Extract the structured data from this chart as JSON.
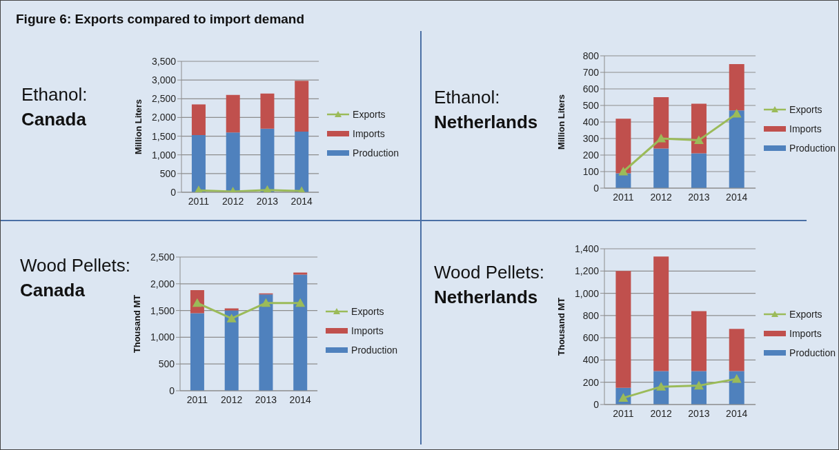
{
  "chart_data": [
    {
      "type": "bar",
      "title": "Ethanol:",
      "subtitle": "Canada",
      "annotations": [
        "Figure 6: Exports compared to import demand"
      ],
      "ylabel": "Million Liters",
      "categories": [
        "2011",
        "2012",
        "2013",
        "2014"
      ],
      "stacked": true,
      "grid": "y",
      "legend": "right",
      "marker": "triangle",
      "ylim": [
        0,
        3500
      ],
      "yticks": [
        0,
        500,
        {
          "value": 1000,
          "label": "1,000"
        },
        {
          "value": 1500,
          "label": "1,500"
        },
        {
          "value": 2000,
          "label": "2,000"
        },
        {
          "value": 2500,
          "label": "2,500"
        },
        {
          "value": 3000,
          "label": "3,000"
        },
        {
          "value": 3500,
          "label": "3,500"
        }
      ],
      "series": [
        {
          "name": "Production",
          "color": "#4f81bd",
          "values": [
            1530,
            1600,
            1700,
            1620
          ]
        },
        {
          "name": "Imports",
          "color": "#c0504d",
          "values": [
            820,
            1000,
            940,
            1360
          ]
        },
        {
          "name": "Exports",
          "type": "line",
          "color": "#9bbb59",
          "values": [
            50,
            20,
            60,
            30
          ]
        }
      ]
    },
    {
      "type": "bar",
      "title": "Ethanol:",
      "subtitle": "Netherlands",
      "ylabel": "Million Liters",
      "categories": [
        "2011",
        "2012",
        "2013",
        "2014"
      ],
      "stacked": true,
      "grid": "y",
      "legend": "right",
      "marker": "triangle",
      "ylim": [
        0,
        800
      ],
      "yticks": [
        0,
        100,
        200,
        300,
        400,
        500,
        600,
        700,
        800
      ],
      "series": [
        {
          "name": "Production",
          "color": "#4f81bd",
          "values": [
            90,
            240,
            210,
            470
          ]
        },
        {
          "name": "Imports",
          "color": "#c0504d",
          "values": [
            330,
            310,
            300,
            280
          ]
        },
        {
          "name": "Exports",
          "type": "line",
          "color": "#9bbb59",
          "values": [
            100,
            300,
            290,
            450
          ]
        }
      ]
    },
    {
      "type": "bar",
      "title": "Wood Pellets:",
      "subtitle": "Canada",
      "ylabel": "Thousand MT",
      "categories": [
        "2011",
        "2012",
        "2013",
        "2014"
      ],
      "stacked": true,
      "grid": "y",
      "legend": "right",
      "marker": "triangle",
      "ylim": [
        0,
        2500
      ],
      "yticks": [
        0,
        500,
        {
          "value": 1000,
          "label": "1,000"
        },
        {
          "value": 1500,
          "label": "1,500"
        },
        {
          "value": 2000,
          "label": "2,000"
        },
        {
          "value": 2500,
          "label": "2,500"
        }
      ],
      "series": [
        {
          "name": "Production",
          "color": "#4f81bd",
          "values": [
            1450,
            1500,
            1800,
            2170
          ]
        },
        {
          "name": "Imports",
          "color": "#c0504d",
          "values": [
            430,
            40,
            20,
            40
          ]
        },
        {
          "name": "Exports",
          "type": "line",
          "color": "#9bbb59",
          "values": [
            1640,
            1350,
            1640,
            1640
          ]
        }
      ]
    },
    {
      "type": "bar",
      "title": "Wood Pellets:",
      "subtitle": "Netherlands",
      "ylabel": "Thousand MT",
      "categories": [
        "2011",
        "2012",
        "2013",
        "2014"
      ],
      "stacked": true,
      "grid": "y",
      "legend": "right",
      "marker": "triangle",
      "ylim": [
        0,
        1400
      ],
      "yticks": [
        0,
        200,
        400,
        600,
        800,
        {
          "value": 1000,
          "label": "1,000"
        },
        {
          "value": 1200,
          "label": "1,200"
        },
        {
          "value": 1400,
          "label": "1,400"
        }
      ],
      "series": [
        {
          "name": "Production",
          "color": "#4f81bd",
          "values": [
            150,
            300,
            300,
            300
          ]
        },
        {
          "name": "Imports",
          "color": "#c0504d",
          "values": [
            1050,
            1030,
            540,
            380
          ]
        },
        {
          "name": "Exports",
          "type": "line",
          "color": "#9bbb59",
          "values": [
            60,
            160,
            170,
            230
          ]
        }
      ]
    }
  ]
}
